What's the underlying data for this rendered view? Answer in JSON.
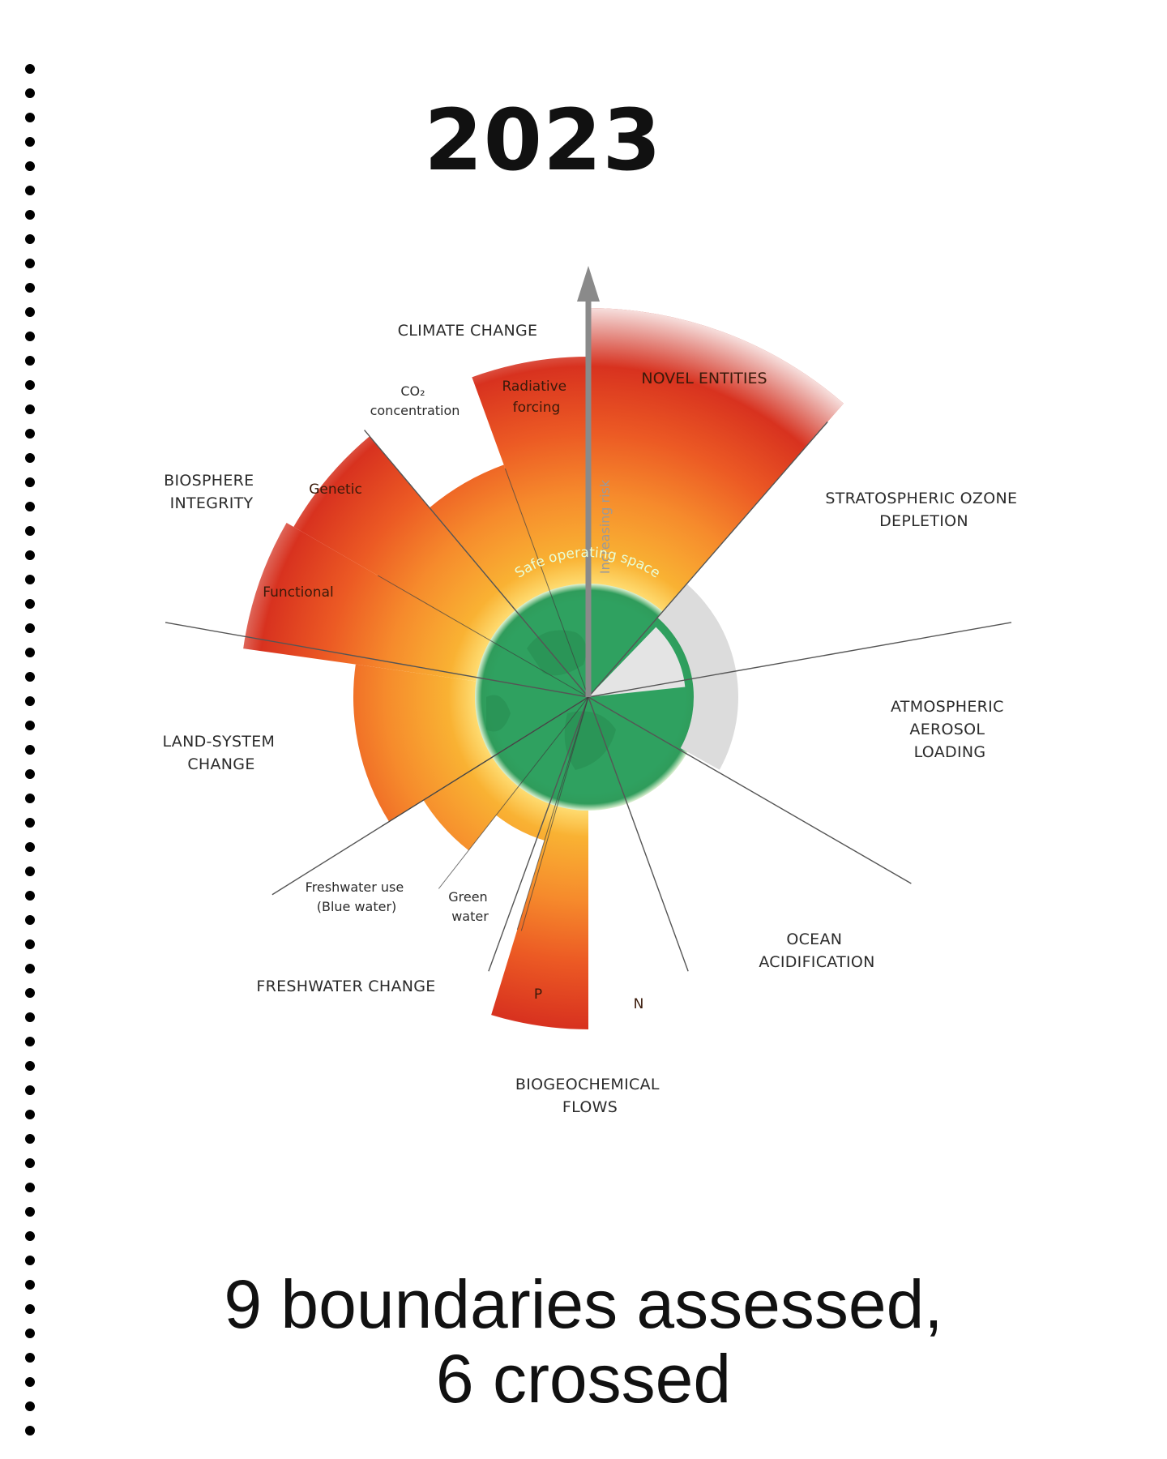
{
  "title": "2023",
  "caption": {
    "line1": "9 boundaries assessed,",
    "line2": "6 crossed"
  },
  "diagram": {
    "center_label": "Safe operating space",
    "axis_label": "Increasing risk",
    "boundaries": {
      "climate_change": "CLIMATE CHANGE",
      "novel_entities": "NOVEL ENTITIES",
      "ozone": [
        "STRATOSPHERIC OZONE",
        "DEPLETION"
      ],
      "aerosol": [
        "ATMOSPHERIC",
        "AEROSOL",
        "LOADING"
      ],
      "ocean": [
        "OCEAN",
        "ACIDIFICATION"
      ],
      "biogeochemical": [
        "BIOGEOCHEMICAL",
        "FLOWS"
      ],
      "freshwater": "FRESHWATER CHANGE",
      "land_system": [
        "LAND-SYSTEM",
        "CHANGE"
      ],
      "biosphere": [
        "BIOSPHERE",
        "INTEGRITY"
      ]
    },
    "sub_labels": {
      "co2": [
        "CO₂",
        "concentration"
      ],
      "radiative": [
        "Radiative",
        "forcing"
      ],
      "genetic": "Genetic",
      "functional": "Functional",
      "blue_water": [
        "Freshwater use",
        "(Blue water)"
      ],
      "green_water": [
        "Green",
        "water"
      ],
      "p": "P",
      "n": "N"
    }
  },
  "colors": {
    "safe": "#2fa160",
    "zone_low": "#f9b233",
    "zone_mid": "#f47c2a",
    "zone_high": "#d8321f",
    "unknown": "#d9d9d9"
  }
}
